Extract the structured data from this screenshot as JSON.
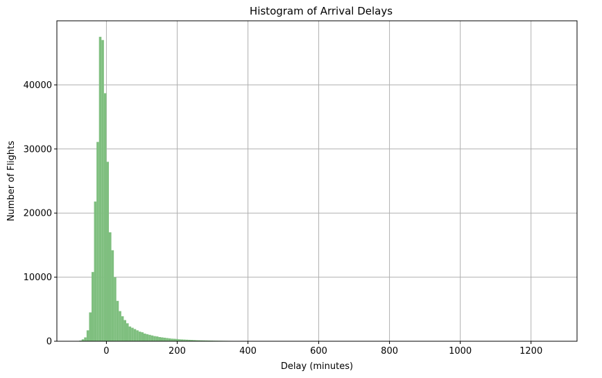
{
  "chart_data": {
    "type": "bar",
    "title": "Histogram of Arrival Delays",
    "xlabel": "Delay (minutes)",
    "ylabel": "Number of Flights",
    "xlim": [
      -140,
      1330
    ],
    "ylim": [
      0,
      50000
    ],
    "xticks": [
      0,
      200,
      400,
      600,
      800,
      1000,
      1200
    ],
    "yticks": [
      0,
      10000,
      20000,
      30000,
      40000
    ],
    "grid": true,
    "bar_color": "#7fbf7f",
    "bin_width": 7,
    "bins_start": [
      -77,
      -70,
      -63,
      -56,
      -49,
      -42,
      -35,
      -28,
      -21,
      -14,
      -7,
      0,
      7,
      14,
      21,
      28,
      35,
      42,
      49,
      56,
      63,
      70,
      77,
      84,
      91,
      98,
      105,
      112,
      119,
      126,
      133,
      140,
      147,
      154,
      161,
      168,
      175,
      182,
      189,
      196,
      203,
      210,
      217,
      224,
      231,
      238,
      245,
      252,
      259,
      266,
      273,
      280,
      287,
      294,
      301,
      308,
      315,
      322,
      329,
      336,
      343,
      350
    ],
    "counts": [
      100,
      300,
      600,
      1700,
      4500,
      10800,
      21800,
      31100,
      47500,
      47000,
      38700,
      28000,
      17000,
      14200,
      10000,
      6300,
      4700,
      3900,
      3300,
      2800,
      2300,
      2100,
      1900,
      1700,
      1500,
      1400,
      1200,
      1100,
      1000,
      900,
      800,
      750,
      650,
      600,
      550,
      500,
      450,
      400,
      380,
      350,
      300,
      280,
      260,
      240,
      220,
      200,
      180,
      160,
      150,
      140,
      130,
      120,
      110,
      100,
      90,
      85,
      80,
      75,
      70,
      65,
      60,
      55
    ]
  }
}
